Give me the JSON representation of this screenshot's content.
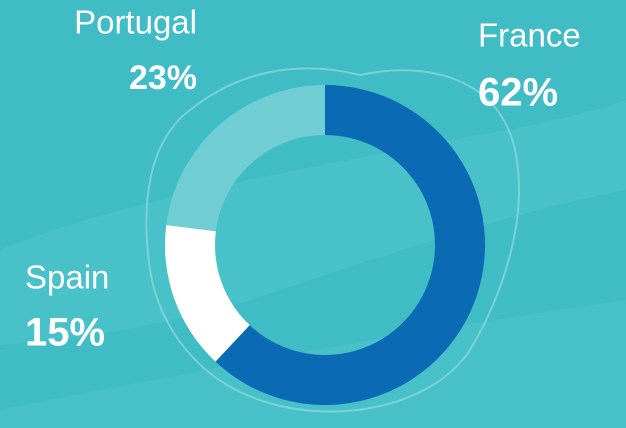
{
  "chart_data": {
    "type": "donut",
    "categories": [
      "France",
      "Spain",
      "Portugal"
    ],
    "values": [
      62,
      15,
      23
    ],
    "value_labels": [
      "62%",
      "15%",
      "23%"
    ],
    "colors": [
      "#0a6ab4",
      "#ffffff",
      "#6fcdd3"
    ]
  }
}
